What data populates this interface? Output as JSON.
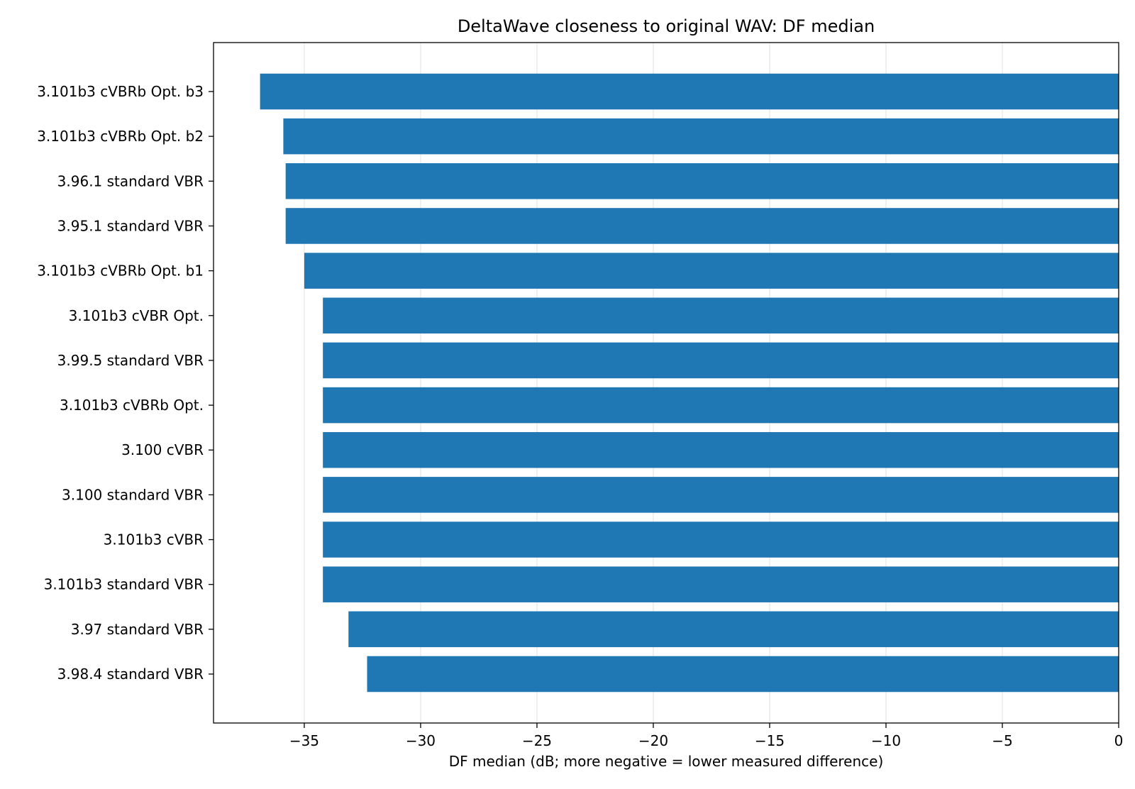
{
  "chart_data": {
    "type": "bar",
    "orientation": "horizontal",
    "title": "DeltaWave closeness to original WAV: DF median",
    "xlabel": "DF median (dB; more negative = lower measured difference)",
    "ylabel": "",
    "xlim": [
      -38.9,
      0
    ],
    "xticks": [
      -35,
      -30,
      -25,
      -20,
      -15,
      -10,
      -5,
      0
    ],
    "xtick_labels": [
      "−35",
      "−30",
      "−25",
      "−20",
      "−15",
      "−10",
      "−5",
      "0"
    ],
    "grid": "vertical",
    "categories": [
      "3.101b3 cVBRb Opt. b3",
      "3.101b3 cVBRb Opt. b2",
      "3.96.1 standard VBR",
      "3.95.1 standard VBR",
      "3.101b3 cVBRb Opt. b1",
      "3.101b3 cVBR Opt.",
      "3.99.5 standard VBR",
      "3.101b3 cVBRb Opt.",
      "3.100 cVBR",
      "3.100 standard VBR",
      "3.101b3 cVBR",
      "3.101b3 standard VBR",
      "3.97 standard VBR",
      "3.98.4 standard VBR"
    ],
    "values": [
      -36.9,
      -35.9,
      -35.8,
      -35.8,
      -35.0,
      -34.2,
      -34.2,
      -34.2,
      -34.2,
      -34.2,
      -34.2,
      -34.2,
      -33.1,
      -32.3
    ],
    "colors": {
      "bar": "#1f77b4",
      "grid": "#e0e0e0",
      "axis": "#000000"
    }
  }
}
